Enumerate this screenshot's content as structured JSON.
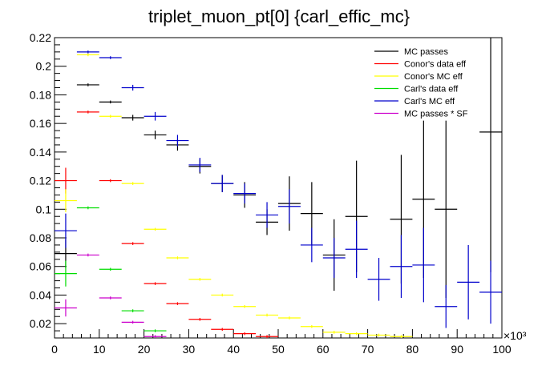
{
  "chart_data": {
    "type": "scatter",
    "title": "triplet_muon_pt[0]  {carl_effic_mc}",
    "xlabel": "",
    "ylabel": "",
    "x_multiplier_label": "×10³",
    "xlim": [
      0,
      100
    ],
    "ylim": [
      0.01,
      0.22
    ],
    "x_ticks": [
      "0",
      "10",
      "20",
      "30",
      "40",
      "50",
      "60",
      "70",
      "80",
      "90",
      "100"
    ],
    "y_ticks": [
      "0.02",
      "0.04",
      "0.06",
      "0.08",
      "0.1",
      "0.12",
      "0.14",
      "0.16",
      "0.18",
      "0.2",
      "0.22"
    ],
    "grid": false,
    "legend_position": "top-right",
    "bin_width": 5,
    "x": [
      2.5,
      7.5,
      12.5,
      17.5,
      22.5,
      27.5,
      32.5,
      37.5,
      42.5,
      47.5,
      52.5,
      57.5,
      62.5,
      67.5,
      72.5,
      77.5,
      82.5,
      87.5,
      92.5,
      97.5
    ],
    "series": [
      {
        "name": "MC passes",
        "color": "#000000",
        "values": [
          0.069,
          0.187,
          0.175,
          0.164,
          0.152,
          0.145,
          0.13,
          0.118,
          0.11,
          0.091,
          0.104,
          0.097,
          0.068,
          0.095,
          null,
          0.093,
          0.107,
          0.1,
          null,
          0.154
        ],
        "errors": [
          0.01,
          0.001,
          0.001,
          0.002,
          0.003,
          0.004,
          0.005,
          0.006,
          0.009,
          0.009,
          0.019,
          0.022,
          0.025,
          0.039,
          null,
          0.045,
          0.055,
          0.062,
          null,
          0.098
        ]
      },
      {
        "name": "Conor's data eff",
        "color": "#ff0000",
        "values": [
          0.12,
          0.168,
          0.12,
          0.076,
          0.048,
          0.034,
          0.023,
          0.016,
          0.013,
          0.011,
          null,
          null,
          null,
          null,
          null,
          null,
          null,
          null,
          null,
          null
        ],
        "errors": [
          0.009,
          0.001,
          0.001,
          0.001,
          0.001,
          0.001,
          0.001,
          0.001,
          0.001,
          0.001,
          null,
          null,
          null,
          null,
          null,
          null,
          null,
          null,
          null,
          null
        ]
      },
      {
        "name": "Conor's MC eff",
        "color": "#ffff00",
        "values": [
          0.106,
          0.208,
          0.165,
          0.118,
          0.086,
          0.066,
          0.051,
          0.04,
          0.032,
          0.026,
          0.024,
          0.018,
          0.014,
          0.013,
          0.012,
          0.011,
          null,
          null,
          null,
          null
        ],
        "errors": [
          0.008,
          0.001,
          0.001,
          0.001,
          0.001,
          0.001,
          0.001,
          0.001,
          0.001,
          0.001,
          0.001,
          0.001,
          0.001,
          0.001,
          0.001,
          0.001,
          null,
          null,
          null,
          null
        ]
      },
      {
        "name": "Carl's data eff",
        "color": "#00dd00",
        "values": [
          0.055,
          0.101,
          0.058,
          0.029,
          0.015,
          null,
          null,
          null,
          null,
          null,
          null,
          null,
          null,
          null,
          null,
          null,
          null,
          null,
          null,
          null
        ],
        "errors": [
          0.009,
          0.001,
          0.001,
          0.001,
          0.001,
          null,
          null,
          null,
          null,
          null,
          null,
          null,
          null,
          null,
          null,
          null,
          null,
          null,
          null,
          null
        ]
      },
      {
        "name": "Carl's MC eff",
        "color": "#0000cc",
        "values": [
          0.085,
          0.21,
          0.206,
          0.185,
          0.165,
          0.148,
          0.131,
          0.118,
          0.111,
          0.096,
          0.102,
          0.075,
          0.066,
          0.072,
          0.051,
          0.06,
          0.061,
          0.032,
          0.049,
          0.042
        ],
        "errors": [
          0.012,
          0.001,
          0.001,
          0.002,
          0.003,
          0.004,
          0.005,
          0.006,
          0.007,
          0.009,
          0.012,
          0.012,
          0.014,
          0.02,
          0.015,
          0.022,
          0.026,
          0.015,
          0.026,
          0.022
        ]
      },
      {
        "name": "MC passes * SF",
        "color": "#cc00cc",
        "values": [
          0.031,
          0.068,
          0.038,
          0.021,
          0.011,
          null,
          null,
          null,
          null,
          null,
          null,
          null,
          null,
          null,
          null,
          null,
          null,
          null,
          null,
          null
        ],
        "errors": [
          0.006,
          0.001,
          0.001,
          0.001,
          0.001,
          null,
          null,
          null,
          null,
          null,
          null,
          null,
          null,
          null,
          null,
          null,
          null,
          null,
          null,
          null
        ]
      }
    ]
  }
}
